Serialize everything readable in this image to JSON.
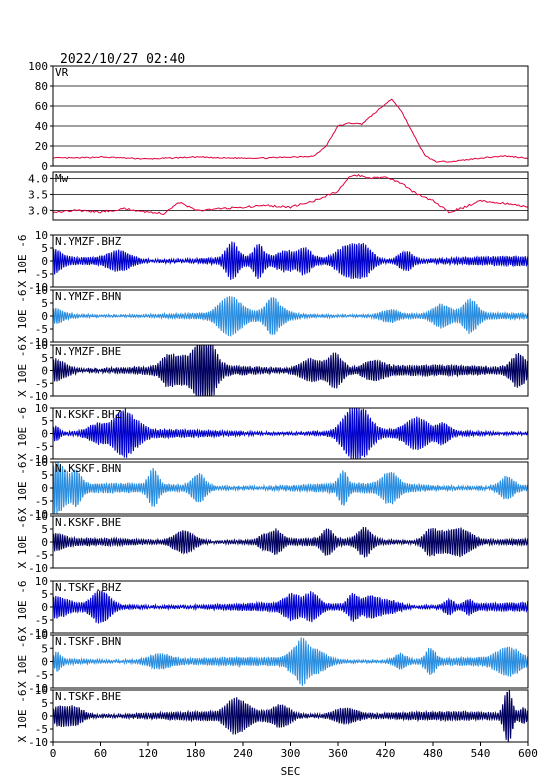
{
  "header": {
    "timestamp": "2022/10/27 02:40"
  },
  "x_axis": {
    "label": "SEC",
    "range": [
      0,
      600
    ],
    "ticks": [
      "0",
      "60",
      "120",
      "180",
      "240",
      "300",
      "360",
      "420",
      "480",
      "540",
      "600"
    ]
  },
  "colors": {
    "frame": "#000000",
    "vr_mw": "#e0003c",
    "bhz": "#0000cc",
    "bhn": "#2a8ee0",
    "bhe": "#000060"
  },
  "chart_data": [
    {
      "type": "line",
      "title": "VR",
      "ylim": [
        0,
        100
      ],
      "yticks": [
        "0",
        "20",
        "40",
        "60",
        "80",
        "100"
      ],
      "grid": "horizontal",
      "color": "#e0003c",
      "x": [
        0,
        30,
        60,
        90,
        120,
        150,
        180,
        210,
        240,
        270,
        300,
        330,
        345,
        360,
        375,
        390,
        405,
        420,
        428,
        440,
        455,
        470,
        485,
        510,
        540,
        570,
        600
      ],
      "y": [
        8,
        8,
        9,
        8,
        7,
        8,
        9,
        8,
        8,
        8,
        9,
        10,
        20,
        40,
        43,
        42,
        52,
        62,
        67,
        55,
        32,
        10,
        4,
        5,
        8,
        10,
        8
      ]
    },
    {
      "type": "line",
      "title": "Mw",
      "ylim": [
        2.7,
        4.2
      ],
      "yticks": [
        "3.0",
        "3.5",
        "4.0"
      ],
      "grid": "horizontal",
      "color": "#e0003c",
      "x": [
        0,
        30,
        60,
        90,
        120,
        140,
        150,
        160,
        180,
        210,
        240,
        270,
        300,
        330,
        360,
        375,
        385,
        400,
        420,
        440,
        460,
        480,
        500,
        520,
        540,
        560,
        580,
        600
      ],
      "y": [
        2.95,
        3.0,
        2.95,
        3.05,
        2.95,
        2.9,
        3.1,
        3.25,
        3.0,
        3.05,
        3.1,
        3.15,
        3.1,
        3.3,
        3.6,
        4.05,
        4.1,
        4.0,
        4.05,
        3.85,
        3.5,
        3.3,
        2.95,
        3.1,
        3.3,
        3.25,
        3.2,
        3.1
      ]
    },
    {
      "type": "line",
      "title": "N.YMZF.BHZ",
      "ylabel": "X 10E -6",
      "ylim": [
        -10,
        10
      ],
      "yticks": [
        "-10",
        "-5",
        "0",
        "5",
        "10"
      ],
      "color": "#0000cc",
      "amplitude": 2.5
    },
    {
      "type": "line",
      "title": "N.YMZF.BHN",
      "ylabel": "X 10E -6",
      "ylim": [
        -10,
        10
      ],
      "yticks": [
        "-10",
        "-5",
        "0",
        "5",
        "10"
      ],
      "color": "#2a8ee0",
      "amplitude": 1.8
    },
    {
      "type": "line",
      "title": "N.YMZF.BHE",
      "ylabel": "X 10E -6",
      "ylim": [
        -10,
        10
      ],
      "yticks": [
        "-10",
        "-5",
        "0",
        "5",
        "10"
      ],
      "color": "#000060",
      "amplitude": 3.0
    },
    {
      "type": "line",
      "title": "N.KSKF.BHZ",
      "ylabel": "X 10E -6",
      "ylim": [
        -10,
        10
      ],
      "yticks": [
        "-10",
        "-5",
        "0",
        "5",
        "10"
      ],
      "color": "#0000cc",
      "amplitude": 2.2
    },
    {
      "type": "line",
      "title": "N.KSKF.BHN",
      "ylabel": "X 10E -6",
      "ylim": [
        -10,
        10
      ],
      "yticks": [
        "-10",
        "-5",
        "0",
        "5",
        "10"
      ],
      "color": "#2a8ee0",
      "amplitude": 2.6
    },
    {
      "type": "line",
      "title": "N.KSKF.BHE",
      "ylabel": "X 10E -6",
      "ylim": [
        -10,
        10
      ],
      "yticks": [
        "-10",
        "-5",
        "0",
        "5",
        "10"
      ],
      "color": "#000060",
      "amplitude": 2.0
    },
    {
      "type": "line",
      "title": "N.TSKF.BHZ",
      "ylabel": "X 10E -6",
      "ylim": [
        -10,
        10
      ],
      "yticks": [
        "-10",
        "-5",
        "0",
        "5",
        "10"
      ],
      "color": "#0000cc",
      "amplitude": 2.3
    },
    {
      "type": "line",
      "title": "N.TSKF.BHN",
      "ylabel": "X 10E -6",
      "ylim": [
        -10,
        10
      ],
      "yticks": [
        "-10",
        "-5",
        "0",
        "5",
        "10"
      ],
      "color": "#2a8ee0",
      "amplitude": 2.2
    },
    {
      "type": "line",
      "title": "N.TSKF.BHE",
      "ylabel": "X 10E -6",
      "ylim": [
        -10,
        10
      ],
      "yticks": [
        "-10",
        "-5",
        "0",
        "5",
        "10"
      ],
      "color": "#000060",
      "amplitude": 2.4
    }
  ]
}
